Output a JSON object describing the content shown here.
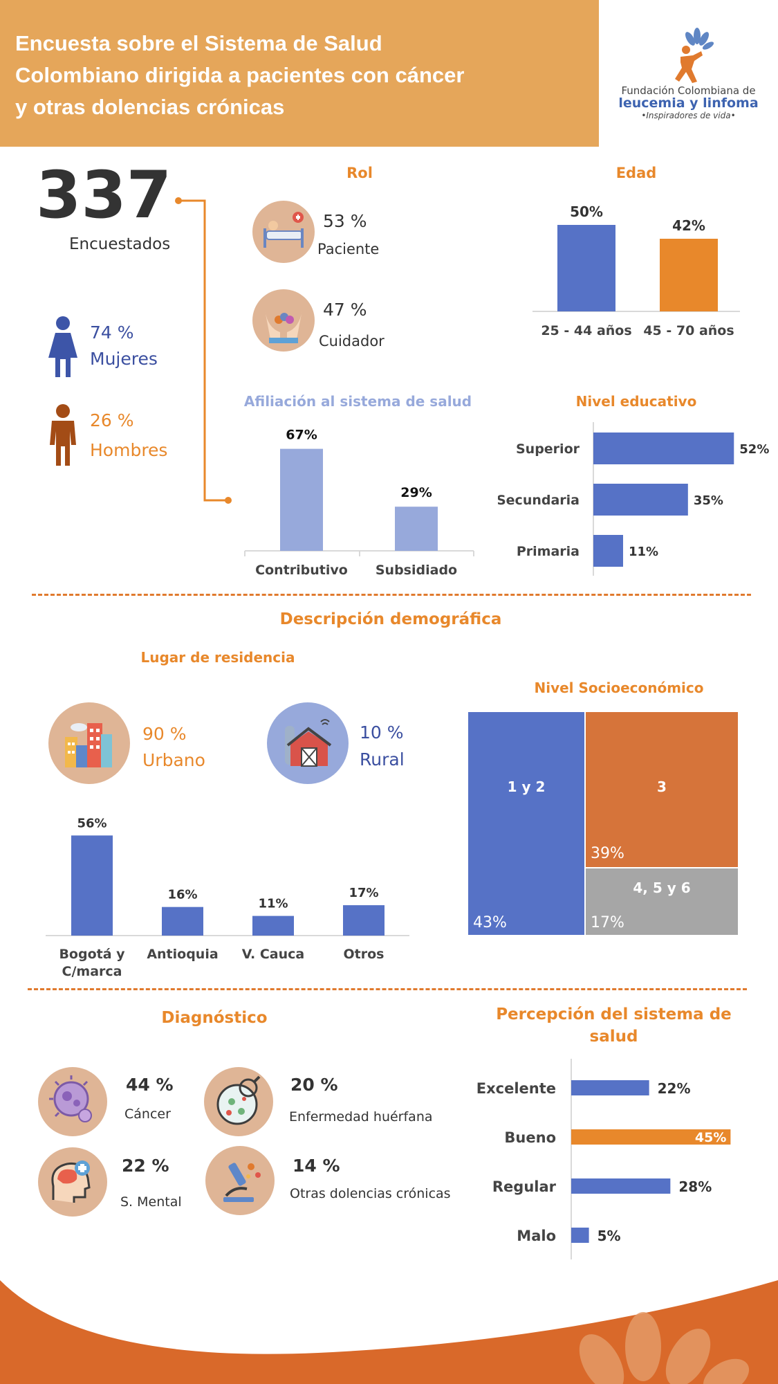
{
  "header": {
    "title_line1": "Encuesta sobre el Sistema de Salud",
    "title_line2": "Colombiano dirigida a pacientes con cáncer",
    "title_line3": "y otras dolencias crónicas",
    "logo_line1": "Fundación Colombiana de",
    "logo_line2": "leucemia y linfoma",
    "logo_line3": "•Inspiradores de vida•"
  },
  "colors": {
    "orange": "#e8882b",
    "blue": "#5672c6",
    "lightblue": "#97a9db",
    "header": "#e5a65a",
    "grey": "#a6a6a6",
    "dark_orange": "#d6743a"
  },
  "respondents": {
    "count": "337",
    "label": "Encuestados"
  },
  "gender": {
    "women_pct": "74 %",
    "women_label": "Mujeres",
    "men_pct": "26 %",
    "men_label": "Hombres"
  },
  "rol": {
    "title": "Rol",
    "patient_pct": "53 %",
    "patient_label": "Paciente",
    "caregiver_pct": "47 %",
    "caregiver_label": "Cuidador"
  },
  "demografia_title": "Descripción demográfica",
  "residencia": {
    "title": "Lugar de residencia",
    "urban_pct": "90 %",
    "urban_label": "Urbano",
    "rural_pct": "10 %",
    "rural_label": "Rural"
  },
  "diagnostico": {
    "title": "Diagnóstico",
    "items": [
      {
        "pct": "44 %",
        "label": "Cáncer"
      },
      {
        "pct": "20 %",
        "label": "Enfermedad huérfana"
      },
      {
        "pct": "22 %",
        "label": "S. Mental"
      },
      {
        "pct": "14 %",
        "label": "Otras dolencias crónicas"
      }
    ]
  },
  "chart_data": [
    {
      "type": "bar",
      "title": "Edad",
      "categories": [
        "25 - 44 años",
        "45 - 70 años"
      ],
      "values": [
        50,
        42
      ],
      "labels": [
        "50%",
        "42%"
      ],
      "ylim": [
        0,
        60
      ]
    },
    {
      "type": "bar",
      "title": "Afiliación al sistema de salud",
      "categories": [
        "Contributivo",
        "Subsidiado"
      ],
      "values": [
        67,
        29
      ],
      "labels": [
        "67%",
        "29%"
      ],
      "ylim": [
        0,
        75
      ]
    },
    {
      "type": "bar",
      "orientation": "horizontal",
      "title": "Nivel educativo",
      "categories": [
        "Superior",
        "Secundaria",
        "Primaria"
      ],
      "values": [
        52,
        35,
        11
      ],
      "labels": [
        "52%",
        "35%",
        "11%"
      ],
      "xlim": [
        0,
        55
      ]
    },
    {
      "type": "bar",
      "title": "Lugar de residencia",
      "categories": [
        "Bogotá y C/marca",
        "Antioquia",
        "V. Cauca",
        "Otros"
      ],
      "categories_line1": [
        "Bogotá y",
        "Antioquia",
        "V. Cauca",
        "Otros"
      ],
      "categories_line2": [
        "C/marca",
        "",
        "",
        ""
      ],
      "values": [
        56,
        16,
        11,
        17
      ],
      "labels": [
        "56%",
        "16%",
        "11%",
        "17%"
      ],
      "ylim": [
        0,
        60
      ]
    },
    {
      "type": "treemap",
      "title": "Nivel Socioeconómico",
      "categories": [
        "1 y 2",
        "3",
        "4, 5 y 6"
      ],
      "values": [
        43,
        39,
        17
      ],
      "labels": [
        "43%",
        "39%",
        "17%"
      ]
    },
    {
      "type": "bar",
      "orientation": "horizontal",
      "title": "Percepción del sistema de salud",
      "title_line1": "Percepción del sistema de",
      "title_line2": "salud",
      "categories": [
        "Excelente",
        "Bueno",
        "Regular",
        "Malo"
      ],
      "values": [
        22,
        45,
        28,
        5
      ],
      "labels": [
        "22%",
        "45%",
        "28%",
        "5%"
      ],
      "xlim": [
        0,
        50
      ]
    }
  ]
}
